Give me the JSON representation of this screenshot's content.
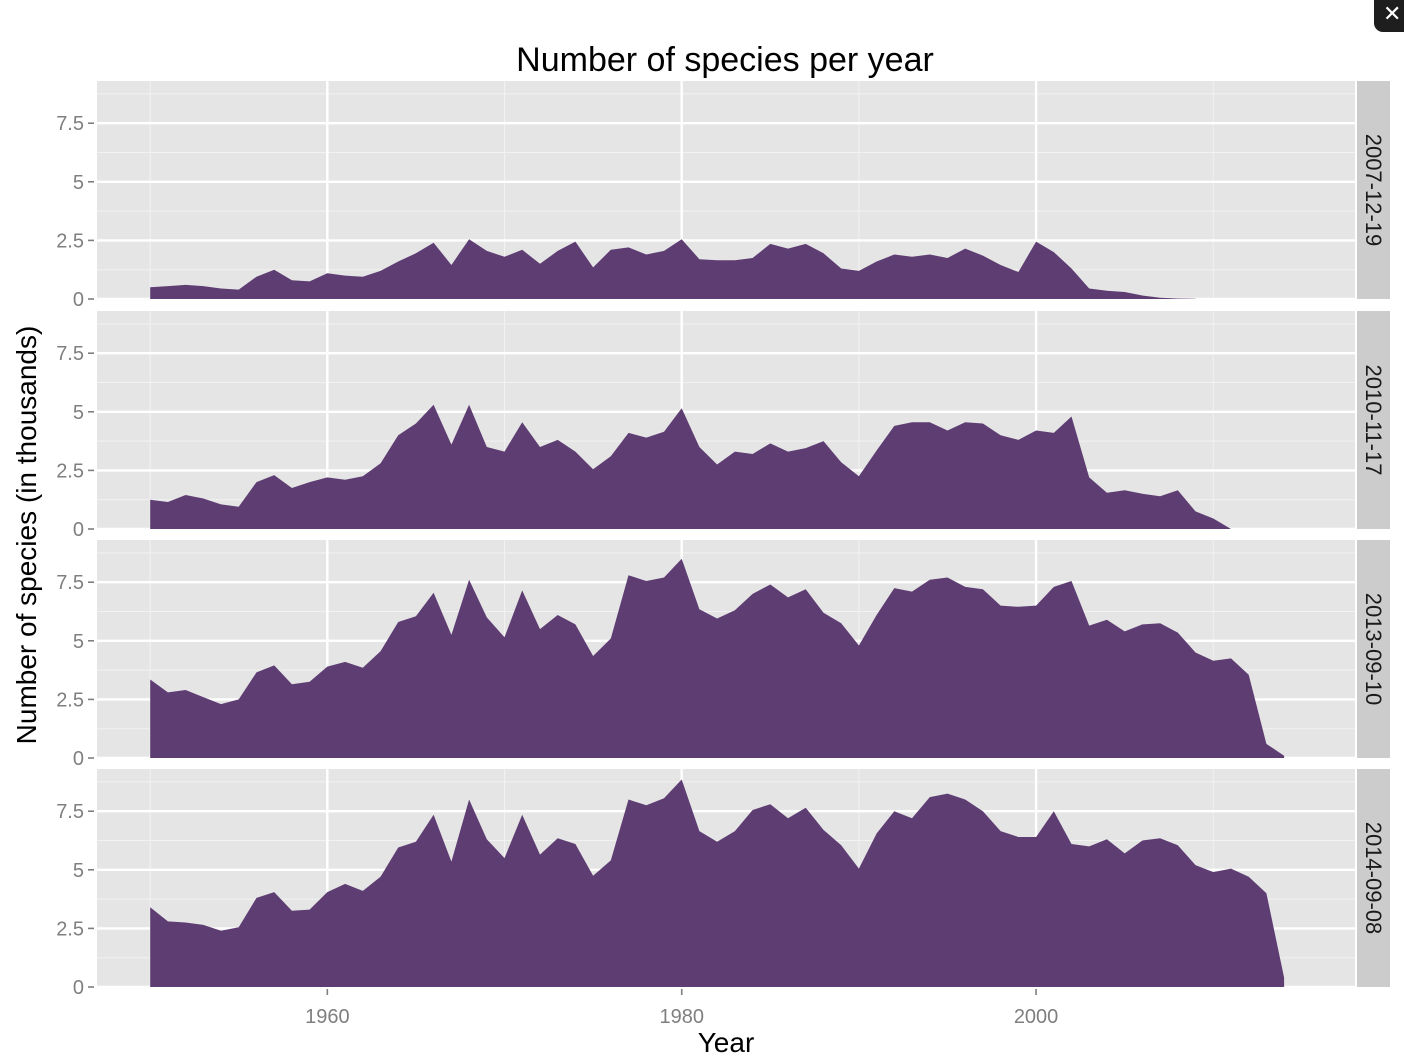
{
  "window": {
    "close_glyph": "✕"
  },
  "chart_data": {
    "type": "area",
    "title": "Number of species per year",
    "xlabel": "Year",
    "ylabel": "Number of species (in thousands)",
    "xlim": [
      1947,
      2018
    ],
    "ylim": [
      0,
      9.3
    ],
    "x_ticks": [
      1960,
      1980,
      2000
    ],
    "y_ticks": [
      0,
      2.5,
      5,
      7.5
    ],
    "y_tick_labels": [
      "0",
      "2.5",
      "5",
      "7.5"
    ],
    "grid": true,
    "fill_color": "#5e3d73",
    "panel_background": "#e5e5e5",
    "strip_background": "#cccccc",
    "x_start": 1950,
    "panels": [
      {
        "label": "2007-12-19",
        "values": [
          0.5,
          0.55,
          0.6,
          0.55,
          0.45,
          0.4,
          0.95,
          1.25,
          0.8,
          0.75,
          1.1,
          1.0,
          0.95,
          1.2,
          1.6,
          1.95,
          2.4,
          1.45,
          2.55,
          2.05,
          1.8,
          2.1,
          1.5,
          2.05,
          2.45,
          1.35,
          2.1,
          2.2,
          1.9,
          2.05,
          2.55,
          1.7,
          1.65,
          1.65,
          1.75,
          2.35,
          2.15,
          2.35,
          1.95,
          1.3,
          1.2,
          1.6,
          1.9,
          1.8,
          1.9,
          1.75,
          2.15,
          1.85,
          1.45,
          1.15,
          2.45,
          2.0,
          1.3,
          0.45,
          0.35,
          0.3,
          0.15,
          0.05,
          0.02,
          0.01
        ]
      },
      {
        "label": "2010-11-17",
        "values": [
          1.25,
          1.15,
          1.45,
          1.3,
          1.05,
          0.95,
          2.0,
          2.3,
          1.75,
          2.0,
          2.2,
          2.1,
          2.25,
          2.8,
          4.0,
          4.5,
          5.3,
          3.6,
          5.3,
          3.5,
          3.3,
          4.55,
          3.5,
          3.8,
          3.3,
          2.55,
          3.1,
          4.1,
          3.9,
          4.15,
          5.15,
          3.5,
          2.75,
          3.3,
          3.2,
          3.65,
          3.3,
          3.45,
          3.75,
          2.85,
          2.25,
          3.35,
          4.4,
          4.55,
          4.55,
          4.2,
          4.55,
          4.5,
          4.0,
          3.8,
          4.2,
          4.1,
          4.8,
          2.2,
          1.55,
          1.65,
          1.5,
          1.4,
          1.65,
          0.75,
          0.45,
          0.0
        ]
      },
      {
        "label": "2013-09-10",
        "values": [
          3.35,
          2.8,
          2.9,
          2.6,
          2.3,
          2.5,
          3.65,
          3.95,
          3.15,
          3.25,
          3.9,
          4.1,
          3.85,
          4.55,
          5.8,
          6.05,
          7.05,
          5.25,
          7.6,
          6.0,
          5.15,
          7.15,
          5.5,
          6.1,
          5.7,
          4.35,
          5.1,
          7.8,
          7.55,
          7.7,
          8.5,
          6.35,
          5.95,
          6.3,
          7.0,
          7.4,
          6.85,
          7.2,
          6.2,
          5.75,
          4.8,
          6.1,
          7.25,
          7.1,
          7.6,
          7.7,
          7.3,
          7.2,
          6.5,
          6.45,
          6.5,
          7.3,
          7.55,
          5.65,
          5.9,
          5.4,
          5.7,
          5.75,
          5.35,
          4.5,
          4.15,
          4.25,
          3.55,
          0.6,
          0.1
        ]
      },
      {
        "label": "2014-09-08",
        "values": [
          3.4,
          2.8,
          2.75,
          2.65,
          2.4,
          2.55,
          3.8,
          4.05,
          3.25,
          3.3,
          4.05,
          4.4,
          4.1,
          4.7,
          5.95,
          6.2,
          7.35,
          5.35,
          8.0,
          6.3,
          5.5,
          7.35,
          5.65,
          6.35,
          6.1,
          4.75,
          5.4,
          8.0,
          7.75,
          8.05,
          8.85,
          6.65,
          6.2,
          6.65,
          7.55,
          7.8,
          7.2,
          7.65,
          6.7,
          6.05,
          5.05,
          6.55,
          7.5,
          7.2,
          8.1,
          8.25,
          8.0,
          7.5,
          6.65,
          6.4,
          6.4,
          7.5,
          6.1,
          6.0,
          6.3,
          5.7,
          6.25,
          6.35,
          6.05,
          5.2,
          4.9,
          5.05,
          4.7,
          4.0,
          0.4
        ]
      }
    ]
  }
}
